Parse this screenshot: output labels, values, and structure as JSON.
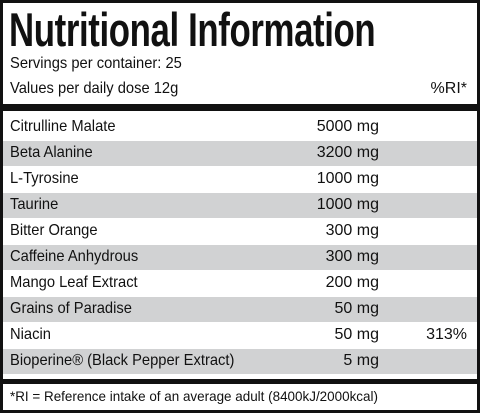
{
  "header": {
    "title": "Nutritional Information",
    "servings": "Servings per container: 25",
    "dose": "Values per daily dose 12g",
    "ri_header": "%RI*"
  },
  "table": {
    "rows": [
      {
        "name": "Citrulline Malate",
        "amount": "5000 mg"
      },
      {
        "name": "Beta Alanine",
        "amount": "3200 mg"
      },
      {
        "name": "L-Tyrosine",
        "amount": "1000 mg"
      },
      {
        "name": "Taurine",
        "amount": "1000 mg"
      },
      {
        "name": "Bitter Orange",
        "amount": "300 mg"
      },
      {
        "name": "Caffeine Anhydrous",
        "amount": "300 mg"
      },
      {
        "name": "Mango Leaf Extract",
        "amount": "200 mg"
      },
      {
        "name": "Grains of Paradise",
        "amount": "50 mg"
      },
      {
        "name": "Niacin",
        "amount": "50 mg",
        "ri": "313%"
      },
      {
        "name": "Bioperine® (Black Pepper Extract)",
        "amount": "5 mg"
      }
    ]
  },
  "footer": "*RI = Reference intake of an average adult (8400kJ/2000kcal)"
}
